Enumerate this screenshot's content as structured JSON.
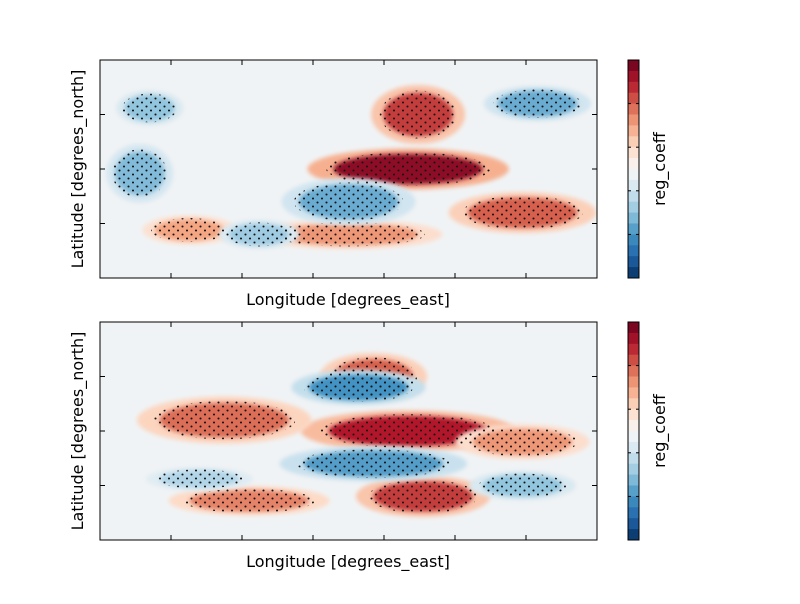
{
  "chart_data": [
    {
      "type": "heatmap",
      "xlabel": "Longitude [degrees_east]",
      "ylabel": "Latitude [degrees_north]",
      "colorbar_label": "reg_coeff",
      "colormap": "RdBu_r",
      "xticks_count": 7,
      "yticks_count": 3,
      "stippling": true,
      "features": [
        {
          "sign": "positive",
          "strength": 0.45,
          "lon": 0.62,
          "lat": 0.5,
          "rlon": 0.15,
          "rlat": 0.07
        },
        {
          "sign": "positive",
          "strength": 0.35,
          "lon": 0.64,
          "lat": 0.25,
          "rlon": 0.07,
          "rlat": 0.1
        },
        {
          "sign": "positive",
          "strength": 0.3,
          "lon": 0.85,
          "lat": 0.7,
          "rlon": 0.11,
          "rlat": 0.07
        },
        {
          "sign": "positive",
          "strength": 0.22,
          "lon": 0.5,
          "lat": 0.8,
          "rlon": 0.14,
          "rlat": 0.05
        },
        {
          "sign": "positive",
          "strength": 0.2,
          "lon": 0.18,
          "lat": 0.78,
          "rlon": 0.07,
          "rlat": 0.05
        },
        {
          "sign": "negative",
          "strength": 0.22,
          "lon": 0.08,
          "lat": 0.52,
          "rlon": 0.05,
          "rlat": 0.1
        },
        {
          "sign": "negative",
          "strength": 0.25,
          "lon": 0.5,
          "lat": 0.65,
          "rlon": 0.1,
          "rlat": 0.08
        },
        {
          "sign": "negative",
          "strength": 0.25,
          "lon": 0.88,
          "lat": 0.2,
          "rlon": 0.08,
          "rlat": 0.06
        },
        {
          "sign": "negative",
          "strength": 0.2,
          "lon": 0.1,
          "lat": 0.22,
          "rlon": 0.05,
          "rlat": 0.06
        },
        {
          "sign": "negative",
          "strength": 0.18,
          "lon": 0.32,
          "lat": 0.8,
          "rlon": 0.06,
          "rlat": 0.05
        }
      ]
    },
    {
      "type": "heatmap",
      "xlabel": "Longitude [degrees_east]",
      "ylabel": "Latitude [degrees_north]",
      "colorbar_label": "reg_coeff",
      "colormap": "RdBu_r",
      "xticks_count": 7,
      "yticks_count": 3,
      "stippling": true,
      "features": [
        {
          "sign": "positive",
          "strength": 0.4,
          "lon": 0.62,
          "lat": 0.5,
          "rlon": 0.16,
          "rlat": 0.07
        },
        {
          "sign": "positive",
          "strength": 0.35,
          "lon": 0.65,
          "lat": 0.8,
          "rlon": 0.1,
          "rlat": 0.07
        },
        {
          "sign": "positive",
          "strength": 0.3,
          "lon": 0.55,
          "lat": 0.25,
          "rlon": 0.08,
          "rlat": 0.08
        },
        {
          "sign": "positive",
          "strength": 0.28,
          "lon": 0.25,
          "lat": 0.45,
          "rlon": 0.13,
          "rlat": 0.08
        },
        {
          "sign": "positive",
          "strength": 0.25,
          "lon": 0.3,
          "lat": 0.82,
          "rlon": 0.12,
          "rlat": 0.05
        },
        {
          "sign": "positive",
          "strength": 0.22,
          "lon": 0.85,
          "lat": 0.55,
          "rlon": 0.1,
          "rlat": 0.06
        },
        {
          "sign": "negative",
          "strength": 0.3,
          "lon": 0.52,
          "lat": 0.3,
          "rlon": 0.1,
          "rlat": 0.06
        },
        {
          "sign": "negative",
          "strength": 0.28,
          "lon": 0.55,
          "lat": 0.65,
          "rlon": 0.14,
          "rlat": 0.06
        },
        {
          "sign": "negative",
          "strength": 0.2,
          "lon": 0.85,
          "lat": 0.75,
          "rlon": 0.08,
          "rlat": 0.05
        },
        {
          "sign": "negative",
          "strength": 0.15,
          "lon": 0.2,
          "lat": 0.72,
          "rlon": 0.08,
          "rlat": 0.04
        }
      ]
    }
  ]
}
